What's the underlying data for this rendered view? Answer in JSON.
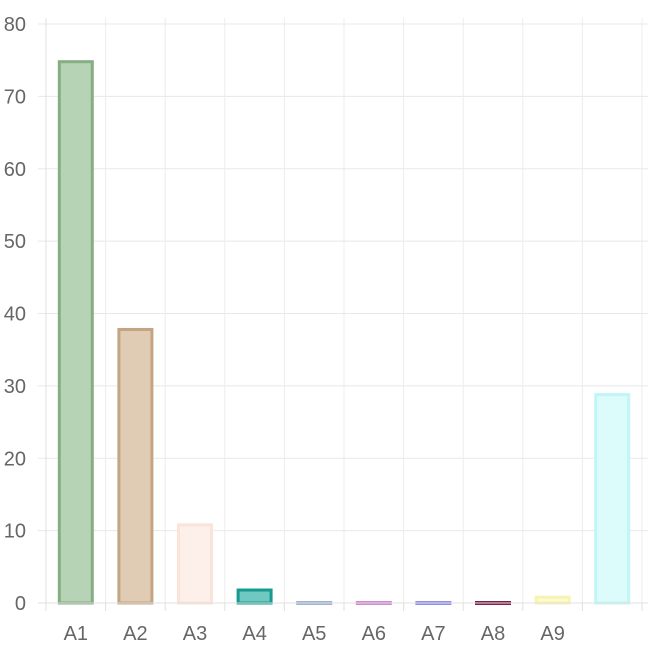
{
  "chart_data": {
    "type": "bar",
    "title": "",
    "xlabel": "",
    "ylabel": "",
    "categories": [
      "A1",
      "A2",
      "A3",
      "A4",
      "A5",
      "A6",
      "A7",
      "A8",
      "A9",
      ""
    ],
    "values": [
      75,
      38,
      11,
      2,
      0,
      0,
      0,
      0,
      1,
      29
    ],
    "ylim": [
      0,
      80
    ],
    "yticks": [
      0,
      10,
      20,
      30,
      40,
      50,
      60,
      70,
      80
    ],
    "grid": true,
    "legend": "none",
    "colors": [
      {
        "fill": "#b7d3b5",
        "stroke": "#86ad84"
      },
      {
        "fill": "#e0ccb4",
        "stroke": "#c4a482"
      },
      {
        "fill": "#fdf0ea",
        "stroke": "#fbe3d8"
      },
      {
        "fill": "#6fc9c1",
        "stroke": "#179a90"
      },
      {
        "fill": "#c5d1e6",
        "stroke": "#9fb2d1"
      },
      {
        "fill": "#e6b3e6",
        "stroke": "#d08ad0"
      },
      {
        "fill": "#b3b3f2",
        "stroke": "#8f8fe6"
      },
      {
        "fill": "#a3476b",
        "stroke": "#7d1f4a"
      },
      {
        "fill": "#fdfbd2",
        "stroke": "#f7f3b0"
      },
      {
        "fill": "#dcfbfb",
        "stroke": "#c2f5f5"
      }
    ]
  }
}
